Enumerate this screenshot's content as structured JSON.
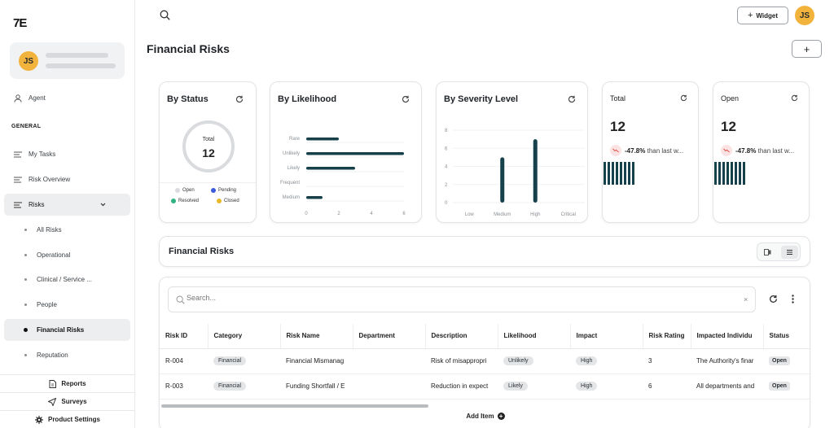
{
  "app": {
    "logo": "7E"
  },
  "sidebar": {
    "user_initials": "JS",
    "agent_label": "Agent",
    "section_label": "GENERAL",
    "items": [
      {
        "label": "My Tasks"
      },
      {
        "label": "Risk Overview"
      },
      {
        "label": "Risks"
      }
    ],
    "subitems": [
      {
        "label": "All Risks"
      },
      {
        "label": "Operational"
      },
      {
        "label": "Clinical / Service ..."
      },
      {
        "label": "People"
      },
      {
        "label": "Financial Risks"
      },
      {
        "label": "Reputation"
      }
    ],
    "bottom": {
      "reports": "Reports",
      "surveys": "Surveys",
      "settings": "Product Settings"
    }
  },
  "header": {
    "widget_label": "Widget",
    "user_initials": "JS",
    "add_label": "+"
  },
  "page": {
    "title": "Financial Risks"
  },
  "widgets": {
    "status": {
      "title": "By Status",
      "total_label": "Total",
      "total_value": "12",
      "legend": [
        {
          "label": "Open",
          "color": "#d9dbde"
        },
        {
          "label": "Pending",
          "color": "#3b5bdb"
        },
        {
          "label": "Resolved",
          "color": "#2fb380"
        },
        {
          "label": "Closed",
          "color": "#e8b92b"
        }
      ]
    },
    "likelihood": {
      "title": "By Likelihood"
    },
    "severity": {
      "title": "By Severity Level"
    },
    "total": {
      "title": "Total",
      "value": "12",
      "change": "-47.8%",
      "suffix": "than last w..."
    },
    "open": {
      "title": "Open",
      "value": "12",
      "change": "-47.8%",
      "suffix": "than last w..."
    }
  },
  "chart_data": [
    {
      "type": "bar",
      "orientation": "horizontal",
      "title": "By Likelihood",
      "categories": [
        "Rare",
        "Unlikely",
        "Likely",
        "Frequent",
        "Medium"
      ],
      "values": [
        2,
        6,
        3,
        0,
        1
      ],
      "xlim": [
        0,
        6
      ],
      "xticks": [
        "0",
        "2",
        "4",
        "6"
      ],
      "color": "#16404a"
    },
    {
      "type": "bar",
      "title": "By Severity Level",
      "categories": [
        "Low",
        "Medium",
        "High",
        "Critical"
      ],
      "values": [
        0,
        5,
        7,
        0
      ],
      "ylim": [
        0,
        8
      ],
      "yticks": [
        "0",
        "2",
        "4",
        "6",
        "8"
      ],
      "color": "#16404a"
    }
  ],
  "table_section": {
    "title": "Financial Risks",
    "search_placeholder": "Search...",
    "add_item": "Add Item",
    "columns": [
      "Risk ID",
      "Category",
      "Risk Name",
      "Department",
      "Description",
      "Likelihood",
      "Impact",
      "Risk Rating",
      "Impacted Individu",
      "Status"
    ],
    "rows": [
      {
        "id": "R-004",
        "category": "Financial",
        "name": "Financial Mismanag",
        "department": "",
        "description": "Risk of misappropri",
        "likelihood": "Unlikely",
        "impact": "High",
        "rating": "3",
        "impacted": "The Authority's finar",
        "status": "Open"
      },
      {
        "id": "R-003",
        "category": "Financial",
        "name": "Funding Shortfall / E",
        "department": "",
        "description": "Reduction in expect",
        "likelihood": "Likely",
        "impact": "High",
        "rating": "6",
        "impacted": "All departments and",
        "status": "Open"
      }
    ]
  }
}
